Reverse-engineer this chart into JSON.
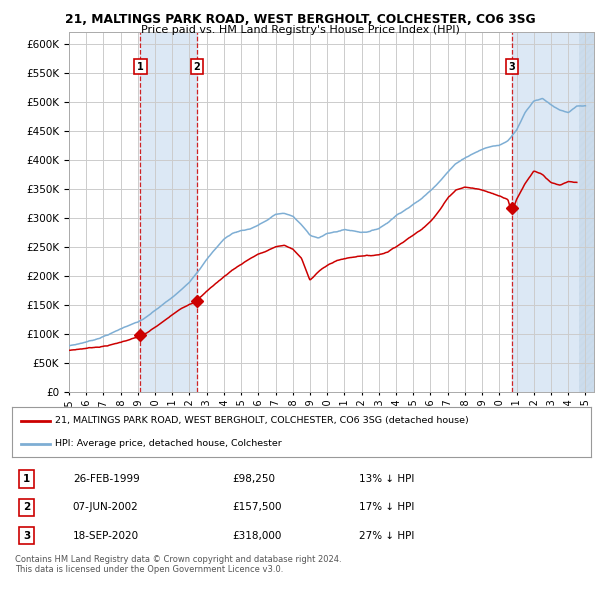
{
  "title": "21, MALTINGS PARK ROAD, WEST BERGHOLT, COLCHESTER, CO6 3SG",
  "subtitle": "Price paid vs. HM Land Registry's House Price Index (HPI)",
  "red_label": "21, MALTINGS PARK ROAD, WEST BERGHOLT, COLCHESTER, CO6 3SG (detached house)",
  "blue_label": "HPI: Average price, detached house, Colchester",
  "sale_points": [
    {
      "label": "1",
      "date_num": 1999.15,
      "price": 98250,
      "pct": "13%",
      "date_str": "26-FEB-1999"
    },
    {
      "label": "2",
      "date_num": 2002.43,
      "price": 157500,
      "pct": "17%",
      "date_str": "07-JUN-2002"
    },
    {
      "label": "3",
      "date_num": 2020.72,
      "price": 318000,
      "pct": "27%",
      "date_str": "18-SEP-2020"
    }
  ],
  "shade_ranges": [
    [
      1999.15,
      2002.43
    ],
    [
      2020.72,
      2025.5
    ]
  ],
  "x_min": 1995.0,
  "x_max": 2025.5,
  "y_min": 0,
  "y_max": 620000,
  "y_ticks": [
    0,
    50000,
    100000,
    150000,
    200000,
    250000,
    300000,
    350000,
    400000,
    450000,
    500000,
    550000,
    600000
  ],
  "background_color": "#ffffff",
  "grid_color": "#cccccc",
  "red_line_color": "#cc0000",
  "blue_line_color": "#7eaed4",
  "shade_color": "#dce8f5",
  "footer": "Contains HM Land Registry data © Crown copyright and database right 2024.\nThis data is licensed under the Open Government Licence v3.0.",
  "hpi_data": {
    "years": [
      1995.0,
      1995.5,
      1996.0,
      1996.5,
      1997.0,
      1997.5,
      1998.0,
      1998.5,
      1999.0,
      1999.5,
      2000.0,
      2000.5,
      2001.0,
      2001.5,
      2002.0,
      2002.5,
      2003.0,
      2003.5,
      2004.0,
      2004.5,
      2005.0,
      2005.5,
      2006.0,
      2006.5,
      2007.0,
      2007.5,
      2008.0,
      2008.5,
      2009.0,
      2009.5,
      2010.0,
      2010.5,
      2011.0,
      2011.5,
      2012.0,
      2012.5,
      2013.0,
      2013.5,
      2014.0,
      2014.5,
      2015.0,
      2015.5,
      2016.0,
      2016.5,
      2017.0,
      2017.5,
      2018.0,
      2018.5,
      2019.0,
      2019.5,
      2020.0,
      2020.5,
      2021.0,
      2021.5,
      2022.0,
      2022.5,
      2023.0,
      2023.5,
      2024.0,
      2024.5,
      2025.0
    ],
    "values": [
      80000,
      83000,
      87000,
      91000,
      97000,
      103000,
      110000,
      117000,
      122000,
      130000,
      141000,
      152000,
      163000,
      175000,
      190000,
      210000,
      230000,
      248000,
      265000,
      275000,
      280000,
      283000,
      290000,
      298000,
      308000,
      310000,
      305000,
      290000,
      272000,
      268000,
      275000,
      278000,
      282000,
      280000,
      278000,
      280000,
      285000,
      295000,
      308000,
      318000,
      328000,
      338000,
      352000,
      368000,
      385000,
      400000,
      410000,
      418000,
      425000,
      430000,
      432000,
      440000,
      460000,
      490000,
      510000,
      515000,
      505000,
      495000,
      490000,
      500000,
      500000
    ]
  },
  "red_data": {
    "years": [
      1995.0,
      1995.5,
      1996.0,
      1996.5,
      1997.0,
      1997.5,
      1998.0,
      1998.5,
      1999.0,
      1999.15,
      1999.5,
      2000.0,
      2000.5,
      2001.0,
      2001.5,
      2002.0,
      2002.43,
      2002.5,
      2003.0,
      2003.5,
      2004.0,
      2004.5,
      2005.0,
      2005.5,
      2006.0,
      2006.5,
      2007.0,
      2007.5,
      2008.0,
      2008.5,
      2009.0,
      2009.5,
      2010.0,
      2010.5,
      2011.0,
      2011.5,
      2012.0,
      2012.5,
      2013.0,
      2013.5,
      2014.0,
      2014.5,
      2015.0,
      2015.5,
      2016.0,
      2016.5,
      2017.0,
      2017.5,
      2018.0,
      2018.5,
      2019.0,
      2019.5,
      2020.0,
      2020.5,
      2020.72,
      2021.0,
      2021.5,
      2022.0,
      2022.5,
      2023.0,
      2023.5,
      2024.0,
      2024.5
    ],
    "values": [
      72000,
      74000,
      76000,
      78000,
      80000,
      83000,
      87000,
      92000,
      96000,
      98250,
      102000,
      112000,
      122000,
      133000,
      143000,
      152000,
      157500,
      162000,
      175000,
      188000,
      200000,
      212000,
      222000,
      232000,
      240000,
      245000,
      252000,
      255000,
      248000,
      232000,
      195000,
      210000,
      220000,
      228000,
      232000,
      235000,
      238000,
      238000,
      240000,
      245000,
      255000,
      265000,
      275000,
      285000,
      300000,
      318000,
      340000,
      355000,
      360000,
      358000,
      355000,
      350000,
      345000,
      340000,
      318000,
      340000,
      368000,
      390000,
      385000,
      370000,
      365000,
      370000,
      368000
    ]
  }
}
